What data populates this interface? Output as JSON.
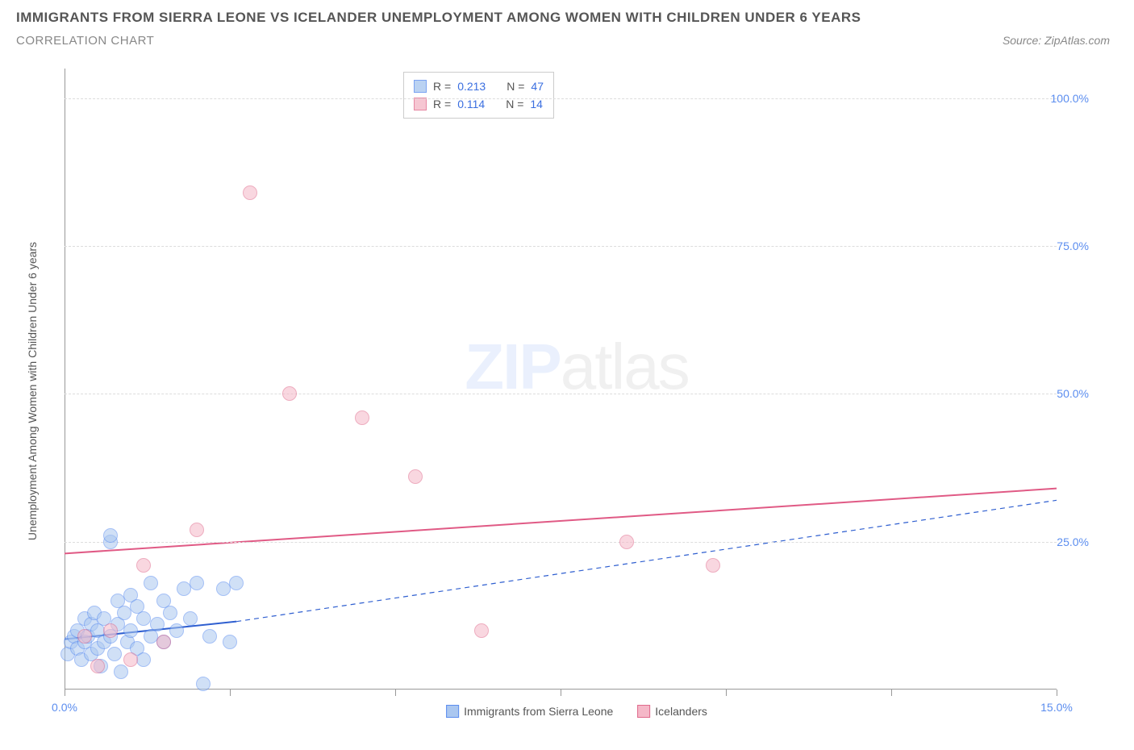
{
  "title": "IMMIGRANTS FROM SIERRA LEONE VS ICELANDER UNEMPLOYMENT AMONG WOMEN WITH CHILDREN UNDER 6 YEARS",
  "subtitle": "CORRELATION CHART",
  "source": "Source: ZipAtlas.com",
  "watermark_bold": "ZIP",
  "watermark_thin": "atlas",
  "y_axis_label": "Unemployment Among Women with Children Under 6 years",
  "chart": {
    "type": "scatter",
    "xlim": [
      0,
      15
    ],
    "ylim": [
      0,
      105
    ],
    "x_ticks": [
      0,
      2.5,
      5,
      7.5,
      10,
      12.5,
      15
    ],
    "x_tick_labels": [
      "0.0%",
      "",
      "",
      "",
      "",
      "",
      "15.0%"
    ],
    "y_grid": [
      25,
      50,
      75,
      100
    ],
    "y_tick_labels": [
      "25.0%",
      "50.0%",
      "75.0%",
      "100.0%"
    ],
    "background_color": "#ffffff",
    "grid_color": "#dddddd",
    "tick_label_color": "#5b8def",
    "marker_radius": 9,
    "marker_border_width": 1.5,
    "series": [
      {
        "name": "Immigrants from Sierra Leone",
        "fill": "#aac7f0",
        "fill_opacity": 0.55,
        "stroke": "#5b8def",
        "trend": {
          "x1": 0,
          "y1": 8.5,
          "x2": 2.6,
          "y2": 11.5,
          "x2_ext": 15,
          "y2_ext": 32,
          "color": "#2f5fd0",
          "solid_until": 2.6,
          "width": 2
        },
        "R": "0.213",
        "N": "47",
        "points": [
          [
            0.05,
            6
          ],
          [
            0.1,
            8
          ],
          [
            0.15,
            9
          ],
          [
            0.2,
            7
          ],
          [
            0.2,
            10
          ],
          [
            0.25,
            5
          ],
          [
            0.3,
            8
          ],
          [
            0.3,
            12
          ],
          [
            0.35,
            9
          ],
          [
            0.4,
            6
          ],
          [
            0.4,
            11
          ],
          [
            0.45,
            13
          ],
          [
            0.5,
            7
          ],
          [
            0.5,
            10
          ],
          [
            0.55,
            4
          ],
          [
            0.6,
            8
          ],
          [
            0.6,
            12
          ],
          [
            0.7,
            9
          ],
          [
            0.7,
            25
          ],
          [
            0.7,
            26
          ],
          [
            0.75,
            6
          ],
          [
            0.8,
            11
          ],
          [
            0.8,
            15
          ],
          [
            0.85,
            3
          ],
          [
            0.9,
            13
          ],
          [
            0.95,
            8
          ],
          [
            1.0,
            10
          ],
          [
            1.0,
            16
          ],
          [
            1.1,
            7
          ],
          [
            1.1,
            14
          ],
          [
            1.2,
            5
          ],
          [
            1.2,
            12
          ],
          [
            1.3,
            9
          ],
          [
            1.3,
            18
          ],
          [
            1.4,
            11
          ],
          [
            1.5,
            8
          ],
          [
            1.5,
            15
          ],
          [
            1.6,
            13
          ],
          [
            1.7,
            10
          ],
          [
            1.8,
            17
          ],
          [
            1.9,
            12
          ],
          [
            2.0,
            18
          ],
          [
            2.1,
            1
          ],
          [
            2.2,
            9
          ],
          [
            2.4,
            17
          ],
          [
            2.5,
            8
          ],
          [
            2.6,
            18
          ]
        ]
      },
      {
        "name": "Icelanders",
        "fill": "#f5b8c8",
        "fill_opacity": 0.55,
        "stroke": "#e06a8c",
        "trend": {
          "x1": 0,
          "y1": 23,
          "x2": 15,
          "y2": 34,
          "color": "#e05a85",
          "width": 2
        },
        "R": "0.114",
        "N": "14",
        "points": [
          [
            0.3,
            9
          ],
          [
            0.5,
            4
          ],
          [
            0.7,
            10
          ],
          [
            1.0,
            5
          ],
          [
            1.2,
            21
          ],
          [
            1.5,
            8
          ],
          [
            2.0,
            27
          ],
          [
            2.8,
            84
          ],
          [
            3.4,
            50
          ],
          [
            4.5,
            46
          ],
          [
            5.3,
            36
          ],
          [
            6.3,
            10
          ],
          [
            8.5,
            25
          ],
          [
            9.8,
            21
          ]
        ]
      }
    ]
  },
  "stats_box": {
    "labels": {
      "R": "R =",
      "N": "N ="
    }
  },
  "legend_bottom": [
    "Immigrants from Sierra Leone",
    "Icelanders"
  ]
}
